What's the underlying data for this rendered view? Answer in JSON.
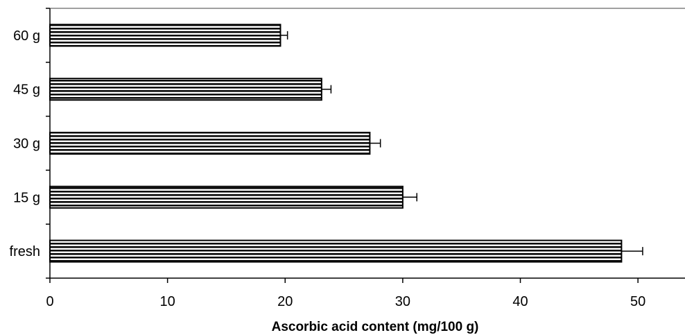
{
  "chart_data": {
    "type": "bar",
    "orientation": "horizontal",
    "title": "",
    "xlabel": "Ascorbic acid content (mg/100 g)",
    "ylabel": "",
    "categories": [
      "fresh",
      "15 g",
      "30 g",
      "45 g",
      "60 g"
    ],
    "values": [
      48.6,
      30.0,
      27.2,
      23.1,
      19.6
    ],
    "errors": [
      1.8,
      1.2,
      0.9,
      0.8,
      0.6
    ],
    "xlim": [
      0,
      54
    ],
    "xticks": [
      0,
      10,
      20,
      30,
      40,
      50
    ],
    "grid": false,
    "legend": "none",
    "bar_fill": "horizontal-stripes",
    "colors": {
      "bar_stripe": "#000000",
      "bar_background": "#ffffff",
      "axis": "#000000",
      "frame_top": "#808080"
    }
  }
}
